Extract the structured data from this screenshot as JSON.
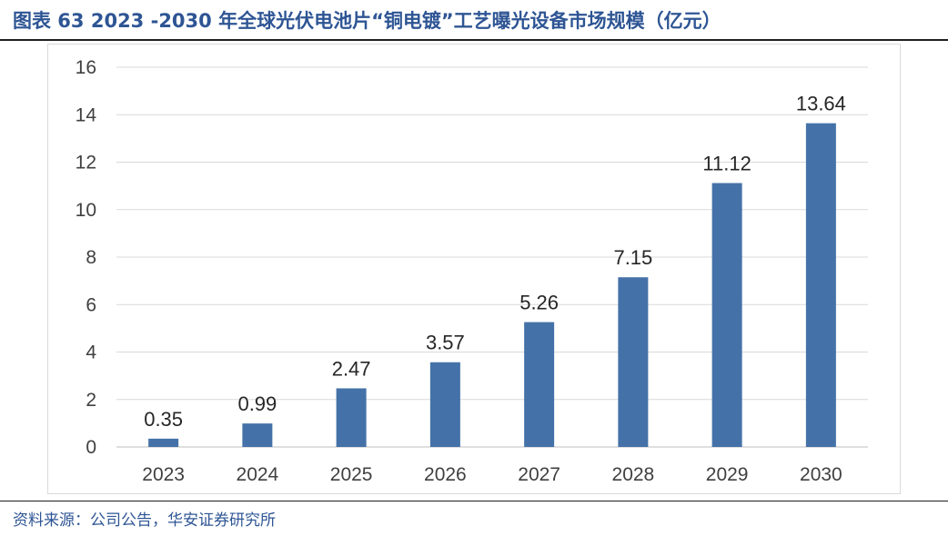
{
  "header": {
    "title": "图表 63 2023 -2030 年全球光伏电池片“铜电镀”工艺曝光设备市场规模（亿元）"
  },
  "footer": {
    "source": "资料来源：公司公告，华安证券研究所"
  },
  "colors": {
    "bar": "#4472a8",
    "title": "#2e5594",
    "grid": "#d9d9d9"
  },
  "chart_data": {
    "type": "bar",
    "categories": [
      "2023",
      "2024",
      "2025",
      "2026",
      "2027",
      "2028",
      "2029",
      "2030"
    ],
    "values": [
      0.35,
      0.99,
      2.47,
      3.57,
      5.26,
      7.15,
      11.12,
      13.64
    ],
    "value_labels": [
      "0.35",
      "0.99",
      "2.47",
      "3.57",
      "5.26",
      "7.15",
      "11.12",
      "13.64"
    ],
    "ylim": [
      0,
      16
    ],
    "yticks": [
      "0",
      "2",
      "4",
      "6",
      "8",
      "10",
      "12",
      "14",
      "16"
    ],
    "grid": true,
    "legend": "none"
  }
}
